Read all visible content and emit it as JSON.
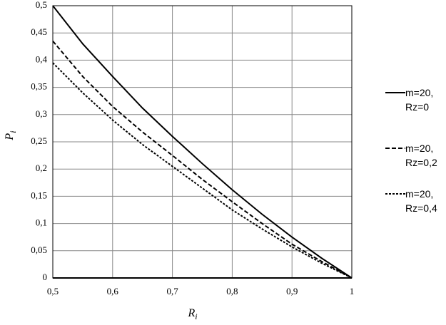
{
  "chart_data": {
    "type": "line",
    "xlabel": "R",
    "xlabel_subscript": "i",
    "ylabel": "P",
    "ylabel_subscript": "i",
    "x": [
      0.5,
      0.55,
      0.6,
      0.65,
      0.7,
      0.75,
      0.8,
      0.85,
      0.9,
      0.95,
      1
    ],
    "series": [
      {
        "name": "m=20, Rz=0",
        "color": "#000000",
        "dash": "solid",
        "values": [
          0.5,
          0.43,
          0.37,
          0.312,
          0.26,
          0.21,
          0.162,
          0.117,
          0.075,
          0.036,
          0
        ]
      },
      {
        "name": "m=20, Rz=0,2",
        "color": "#000000",
        "dash": "dashed",
        "values": [
          0.435,
          0.37,
          0.315,
          0.268,
          0.225,
          0.181,
          0.14,
          0.1,
          0.062,
          0.03,
          0
        ]
      },
      {
        "name": "m=20, Rz=0,4",
        "color": "#000000",
        "dash": "dotted",
        "values": [
          0.395,
          0.34,
          0.29,
          0.245,
          0.205,
          0.165,
          0.125,
          0.09,
          0.057,
          0.027,
          0
        ]
      }
    ],
    "xlim": [
      0.5,
      1
    ],
    "xticks": [
      {
        "value": 0.5,
        "label": "0,5"
      },
      {
        "value": 0.6,
        "label": "0,6"
      },
      {
        "value": 0.7,
        "label": "0,7"
      },
      {
        "value": 0.8,
        "label": "0,8"
      },
      {
        "value": 0.9,
        "label": "0,9"
      },
      1
    ],
    "ylim": [
      0,
      0.5
    ],
    "yticks": [
      0,
      {
        "value": 0.05,
        "label": "0,05"
      },
      {
        "value": 0.1,
        "label": "0,1"
      },
      {
        "value": 0.15,
        "label": "0,15"
      },
      {
        "value": 0.2,
        "label": "0,2"
      },
      {
        "value": 0.25,
        "label": "0,25"
      },
      {
        "value": 0.3,
        "label": "0,3"
      },
      {
        "value": 0.35,
        "label": "0,35"
      },
      {
        "value": 0.4,
        "label": "0,4"
      },
      {
        "value": 0.45,
        "label": "0,45"
      },
      {
        "value": 0.5,
        "label": "0,5"
      }
    ],
    "grid": true,
    "legend": "right"
  }
}
